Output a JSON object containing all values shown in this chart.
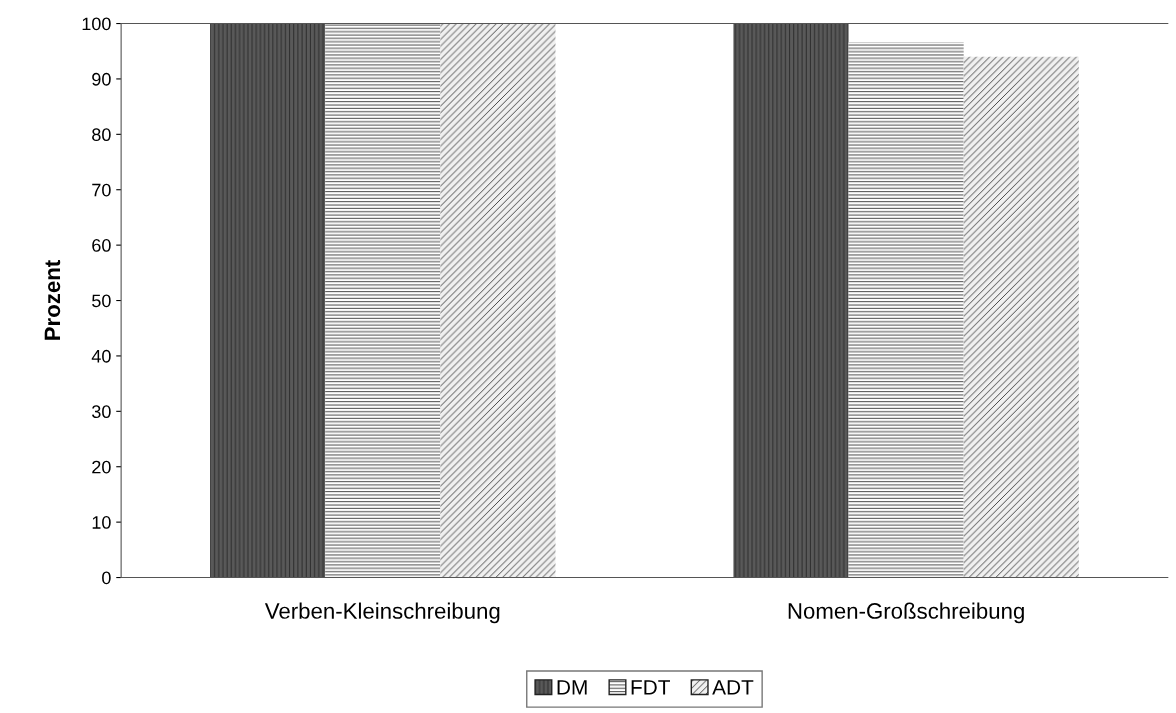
{
  "chart_data": {
    "type": "bar",
    "ylabel": "Prozent",
    "categories": [
      "Verben-Kleinschreibung",
      "Nomen-Großschreibung"
    ],
    "series": [
      {
        "name": "DM",
        "color": "#595959",
        "values": [
          100,
          100
        ]
      },
      {
        "name": "FDT",
        "color": "#ffffff",
        "values": [
          100,
          96.6
        ]
      },
      {
        "name": "ADT",
        "color": "#f0f0f0",
        "values": [
          100,
          94
        ]
      }
    ],
    "ylim": [
      0,
      100
    ],
    "yticks": [
      0,
      10,
      20,
      30,
      40,
      50,
      60,
      70,
      80,
      90,
      100
    ],
    "grid": false,
    "legend": "bottom"
  }
}
